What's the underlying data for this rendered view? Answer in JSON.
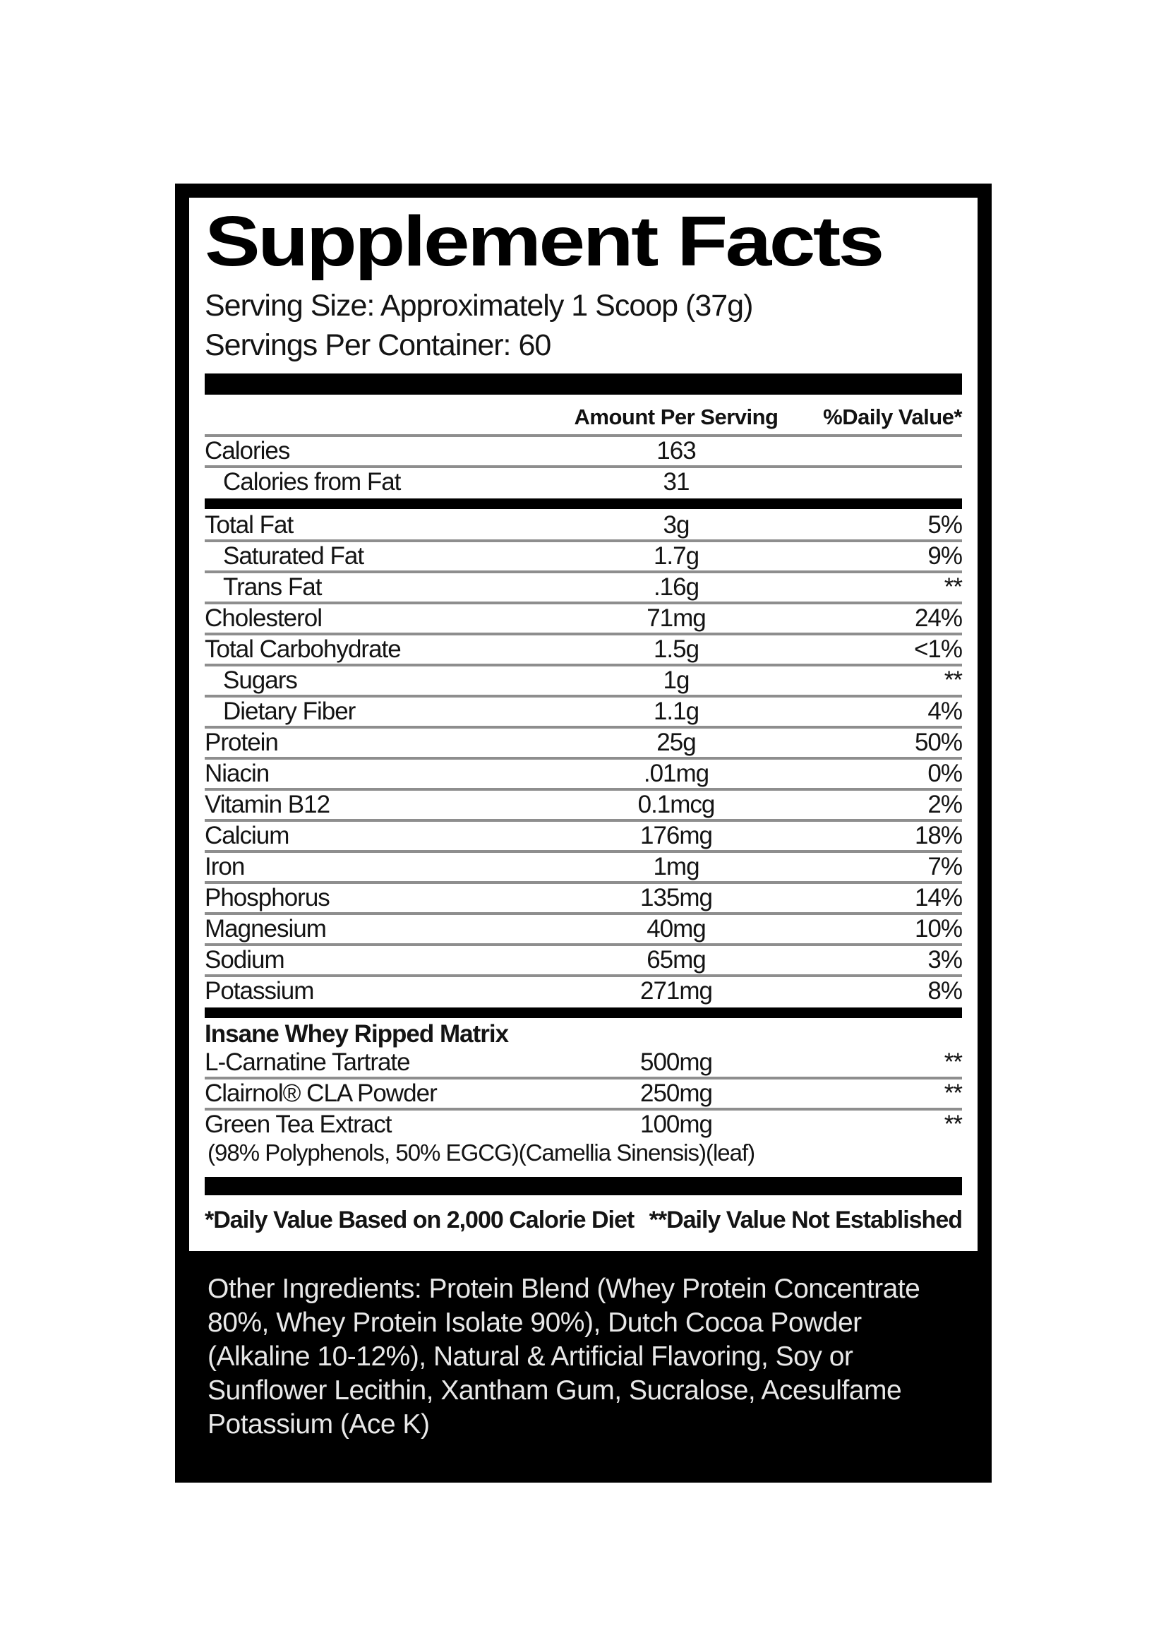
{
  "label": {
    "title": "Supplement Facts",
    "serving_size": "Serving Size: Approximately 1 Scoop (37g)",
    "servings_per_container": "Servings Per Container: 60",
    "header": {
      "amount": "Amount Per Serving",
      "dv": "%Daily Value*"
    },
    "body": [
      {
        "type": "row",
        "name": "Calories",
        "amount": "163",
        "dv": ""
      },
      {
        "type": "sep"
      },
      {
        "type": "row",
        "name": "Calories from Fat",
        "amount": "31",
        "dv": "",
        "indent": true
      },
      {
        "type": "bar"
      },
      {
        "type": "row",
        "name": "Total Fat",
        "amount": "3g",
        "dv": "5%"
      },
      {
        "type": "sep"
      },
      {
        "type": "row",
        "name": "Saturated Fat",
        "amount": "1.7g",
        "dv": "9%",
        "indent": true
      },
      {
        "type": "sep"
      },
      {
        "type": "row",
        "name": "Trans Fat",
        "amount": ".16g",
        "dv": "**",
        "indent": true
      },
      {
        "type": "sep"
      },
      {
        "type": "row",
        "name": "Cholesterol",
        "amount": "71mg",
        "dv": "24%"
      },
      {
        "type": "sep"
      },
      {
        "type": "row",
        "name": "Total Carbohydrate",
        "amount": "1.5g",
        "dv": "<1%"
      },
      {
        "type": "sep"
      },
      {
        "type": "row",
        "name": "Sugars",
        "amount": "1g",
        "dv": "**",
        "indent": true
      },
      {
        "type": "sep"
      },
      {
        "type": "row",
        "name": "Dietary Fiber",
        "amount": "1.1g",
        "dv": "4%",
        "indent": true
      },
      {
        "type": "sep"
      },
      {
        "type": "row",
        "name": "Protein",
        "amount": "25g",
        "dv": "50%"
      },
      {
        "type": "sep"
      },
      {
        "type": "row",
        "name": "Niacin",
        "amount": ".01mg",
        "dv": "0%"
      },
      {
        "type": "sep"
      },
      {
        "type": "row",
        "name": "Vitamin B12",
        "amount": "0.1mcg",
        "dv": "2%"
      },
      {
        "type": "sep"
      },
      {
        "type": "row",
        "name": "Calcium",
        "amount": "176mg",
        "dv": "18%"
      },
      {
        "type": "sep"
      },
      {
        "type": "row",
        "name": "Iron",
        "amount": "1mg",
        "dv": "7%"
      },
      {
        "type": "sep"
      },
      {
        "type": "row",
        "name": "Phosphorus",
        "amount": "135mg",
        "dv": "14%"
      },
      {
        "type": "sep"
      },
      {
        "type": "row",
        "name": "Magnesium",
        "amount": "40mg",
        "dv": "10%"
      },
      {
        "type": "sep"
      },
      {
        "type": "row",
        "name": "Sodium",
        "amount": "65mg",
        "dv": "3%"
      },
      {
        "type": "sep"
      },
      {
        "type": "row",
        "name": "Potassium",
        "amount": "271mg",
        "dv": "8%"
      },
      {
        "type": "bar"
      },
      {
        "type": "row",
        "name": "Insane Whey Ripped Matrix",
        "amount": "",
        "dv": "",
        "bold": true
      },
      {
        "type": "row",
        "name": "L-Carnatine Tartrate",
        "amount": "500mg",
        "dv": "**"
      },
      {
        "type": "sep"
      },
      {
        "type": "row",
        "name": "Clairnol® CLA Powder",
        "amount": "250mg",
        "dv": "**"
      },
      {
        "type": "sep"
      },
      {
        "type": "row",
        "name": "Green Tea Extract",
        "amount": "100mg",
        "dv": "**",
        "note": "(98% Polyphenols, 50% EGCG)(Camellia Sinensis)(leaf)"
      }
    ],
    "footnote_left": "*Daily Value Based on 2,000 Calorie Diet",
    "footnote_right": "**Daily Value Not Established",
    "other_ingredients": "Other Ingredients: Protein Blend (Whey Protein Concentrate 80%, Whey Protein Isolate 90%), Dutch Cocoa Powder (Alkaline 10-12%), Natural & Artificial Flavoring, Soy or Sunflower Lecithin, Xantham Gum, Sucralose, Acesulfame Potassium (Ace K)"
  }
}
